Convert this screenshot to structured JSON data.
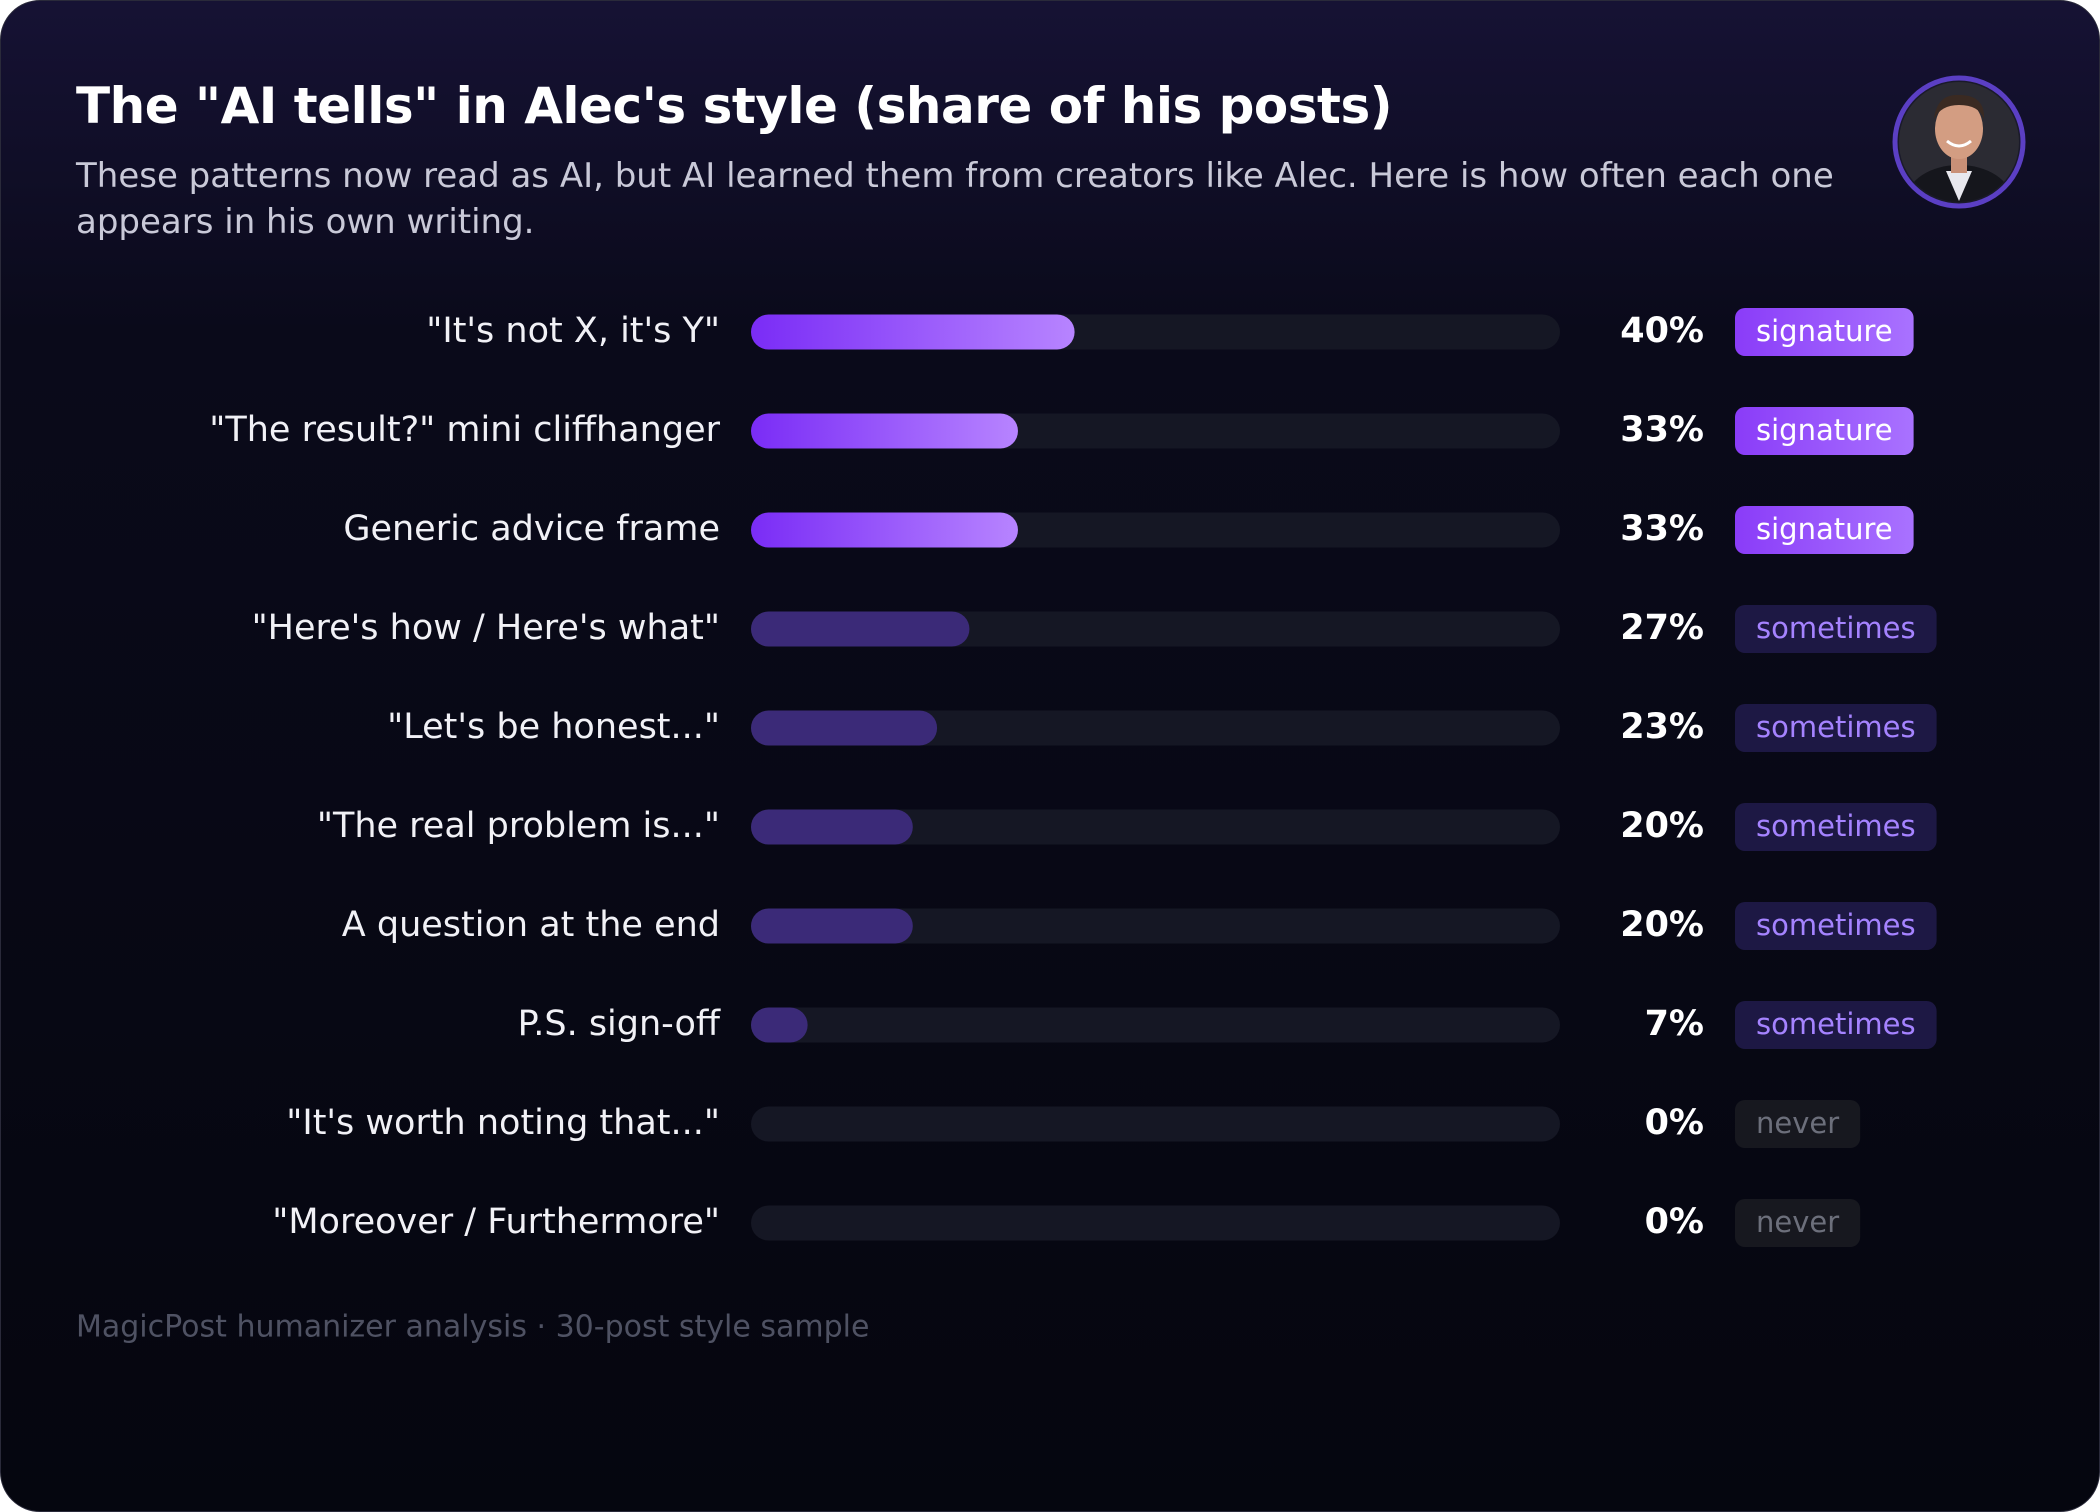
{
  "chart_data": {
    "type": "bar",
    "orientation": "horizontal",
    "title": "The \"AI tells\" in Alec's style (share of his posts)",
    "subtitle": "These patterns now read as AI, but AI learned them from creators like Alec. Here is how often each one appears in his own writing.",
    "categories": [
      "\"It's not X, it's Y\"",
      "\"The result?\" mini cliffhanger",
      "Generic advice frame",
      "\"Here's how / Here's what\"",
      "\"Let's be honest...\"",
      "\"The real problem is...\"",
      "A question at the end",
      "P.S. sign-off",
      "\"It's worth noting that...\"",
      "\"Moreover / Furthermore\""
    ],
    "values": [
      40,
      33,
      33,
      27,
      23,
      20,
      20,
      7,
      0,
      0
    ],
    "value_labels": [
      "40%",
      "33%",
      "33%",
      "27%",
      "23%",
      "20%",
      "20%",
      "7%",
      "0%",
      "0%"
    ],
    "tags": [
      "signature",
      "signature",
      "signature",
      "sometimes",
      "sometimes",
      "sometimes",
      "sometimes",
      "sometimes",
      "never",
      "never"
    ],
    "colors": [
      [
        "#7a2cf6",
        "#b784ff"
      ],
      [
        "#7a2cf6",
        "#b784ff"
      ],
      [
        "#7a2cf6",
        "#b784ff"
      ],
      [
        "#3b2a78",
        "#3b2a78"
      ],
      [
        "#3b2a78",
        "#3b2a78"
      ],
      [
        "#3b2a78",
        "#3b2a78"
      ],
      [
        "#3b2a78",
        "#3b2a78"
      ],
      [
        "#3b2a78",
        "#3b2a78"
      ],
      [
        "#2a2c3a",
        "#2a2c3a"
      ],
      [
        "#2a2c3a",
        "#2a2c3a"
      ]
    ],
    "tag_colors": [
      {
        "bg": [
          "#8a3cf8",
          "#a972ff"
        ],
        "fg": "#ffffff"
      },
      {
        "bg": [
          "#8a3cf8",
          "#a972ff"
        ],
        "fg": "#ffffff"
      },
      {
        "bg": [
          "#8a3cf8",
          "#a972ff"
        ],
        "fg": "#ffffff"
      },
      {
        "bg": [
          "#1d1844",
          "#1d1844"
        ],
        "fg": "#a583ff"
      },
      {
        "bg": [
          "#1d1844",
          "#1d1844"
        ],
        "fg": "#a583ff"
      },
      {
        "bg": [
          "#1d1844",
          "#1d1844"
        ],
        "fg": "#a583ff"
      },
      {
        "bg": [
          "#1d1844",
          "#1d1844"
        ],
        "fg": "#a583ff"
      },
      {
        "bg": [
          "#1d1844",
          "#1d1844"
        ],
        "fg": "#a583ff"
      },
      {
        "bg": [
          "#17181f",
          "#17181f"
        ],
        "fg": "#6c6f7b"
      },
      {
        "bg": [
          "#17181f",
          "#17181f"
        ],
        "fg": "#6c6f7b"
      }
    ],
    "xlim": [
      0,
      100
    ],
    "track_color": "#151724",
    "footer": "MagicPost humanizer analysis · 30-post style sample"
  }
}
